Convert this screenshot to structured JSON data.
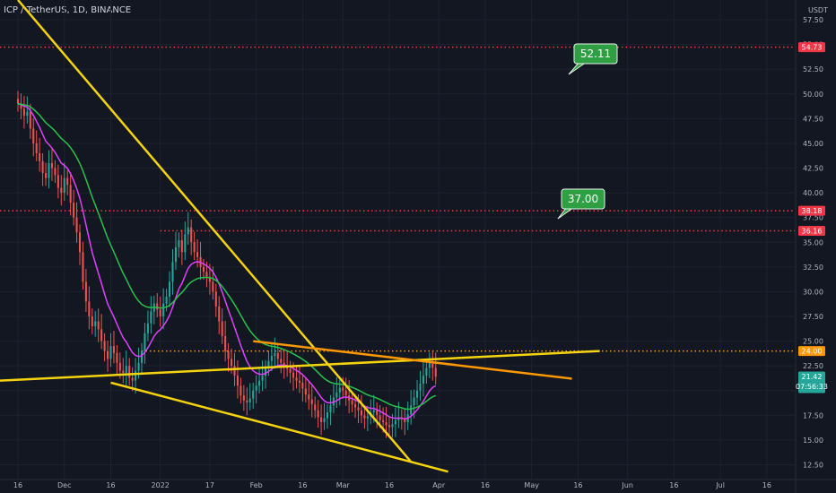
{
  "chart_data": {
    "type": "candlestick",
    "symbol": "ICP / TetherUS, 1D, BINANCE",
    "y_unit": "USDT",
    "ylim": [
      11.0,
      59.5
    ],
    "y_ticks": [
      12.5,
      15.0,
      17.5,
      20.0,
      22.5,
      25.0,
      27.5,
      30.0,
      32.5,
      35.0,
      37.5,
      40.0,
      42.5,
      45.0,
      47.5,
      50.0,
      52.5,
      55.0,
      57.5
    ],
    "x_ticks": [
      {
        "label": "16",
        "day": 0
      },
      {
        "label": "Dec",
        "day": 15
      },
      {
        "label": "16",
        "day": 30
      },
      {
        "label": "2022",
        "day": 46
      },
      {
        "label": "17",
        "day": 62
      },
      {
        "label": "Feb",
        "day": 77
      },
      {
        "label": "16",
        "day": 92
      },
      {
        "label": "Mar",
        "day": 105
      },
      {
        "label": "16",
        "day": 120
      },
      {
        "label": "Apr",
        "day": 136
      },
      {
        "label": "16",
        "day": 151
      },
      {
        "label": "May",
        "day": 166
      },
      {
        "label": "16",
        "day": 181
      },
      {
        "label": "Jun",
        "day": 197
      },
      {
        "label": "16",
        "day": 212
      },
      {
        "label": "Jul",
        "day": 227
      },
      {
        "label": "16",
        "day": 242
      }
    ],
    "closes": [
      49,
      48.5,
      47.8,
      48.2,
      46.5,
      45,
      44,
      43.2,
      42,
      41.5,
      43,
      42.5,
      41.8,
      40.5,
      40,
      41.5,
      40.8,
      39,
      37.5,
      36,
      34,
      31,
      29,
      27.5,
      26.5,
      27,
      26.2,
      25,
      24,
      23.2,
      24.5,
      23.8,
      22.8,
      22,
      21.8,
      22.5,
      21.3,
      21,
      22,
      22.8,
      24,
      25.8,
      26.8,
      28,
      28.8,
      28.2,
      27.5,
      28.8,
      29.5,
      31,
      33,
      34.5,
      35.2,
      34,
      35.8,
      36.5,
      35,
      34,
      33.5,
      32.5,
      32,
      31.5,
      31,
      30,
      28.5,
      27,
      25.5,
      24,
      23.2,
      22.5,
      21.5,
      20.5,
      19.5,
      19,
      18.8,
      19.2,
      20,
      20.5,
      21,
      21.5,
      22.3,
      23,
      23.5,
      23.8,
      23.2,
      22.8,
      22.5,
      22.2,
      21.8,
      21.3,
      21,
      20.8,
      20.2,
      19.6,
      19.1,
      18.6,
      18,
      17.3,
      16.8,
      17.2,
      17.8,
      18.5,
      19.3,
      19.8,
      20.3,
      20,
      19.5,
      19,
      18.6,
      18.3,
      18,
      17.5,
      17.2,
      17.4,
      17.8,
      18,
      17.5,
      17,
      16.8,
      16.5,
      16.3,
      16.6,
      17,
      17.3,
      17.1,
      16.8,
      17.6,
      18.5,
      19.3,
      20,
      20.7,
      21.5,
      22.3,
      22.8,
      22.3,
      21.4
    ],
    "price_labels": [
      "54.73",
      "38.18",
      "36.16",
      "24.00",
      "21.42"
    ],
    "countdown": "07:56:33",
    "annotations": [
      "52.11",
      "37.00"
    ],
    "horizontal_levels": [
      {
        "value": 54.73,
        "color": "#f23645"
      },
      {
        "value": 38.18,
        "color": "#f23645"
      },
      {
        "value": 36.16,
        "color": "#f23645"
      },
      {
        "value": 24.0,
        "color": "#ff9800"
      }
    ],
    "moving_averages": [
      {
        "color": "#e040fb"
      },
      {
        "color": "#27c24c"
      }
    ],
    "trendlines": [
      {
        "color": "#f5d30d",
        "points": [
          [
            0,
            59.5
          ],
          [
            127,
            12.8
          ]
        ]
      },
      {
        "color": "#f5d30d",
        "points": [
          [
            -19,
            20.8
          ],
          [
            188,
            24
          ]
        ]
      },
      {
        "color": "#f5d30d",
        "points": [
          [
            30,
            20.8
          ],
          [
            139,
            11.8
          ]
        ]
      },
      {
        "color": "#ff9800",
        "points": [
          [
            76,
            25.0
          ],
          [
            179,
            21.2
          ]
        ]
      }
    ],
    "colors": {
      "up": "#26a69a",
      "down": "#ef5350",
      "background": "#131722",
      "annotation": "#2ea043"
    }
  }
}
